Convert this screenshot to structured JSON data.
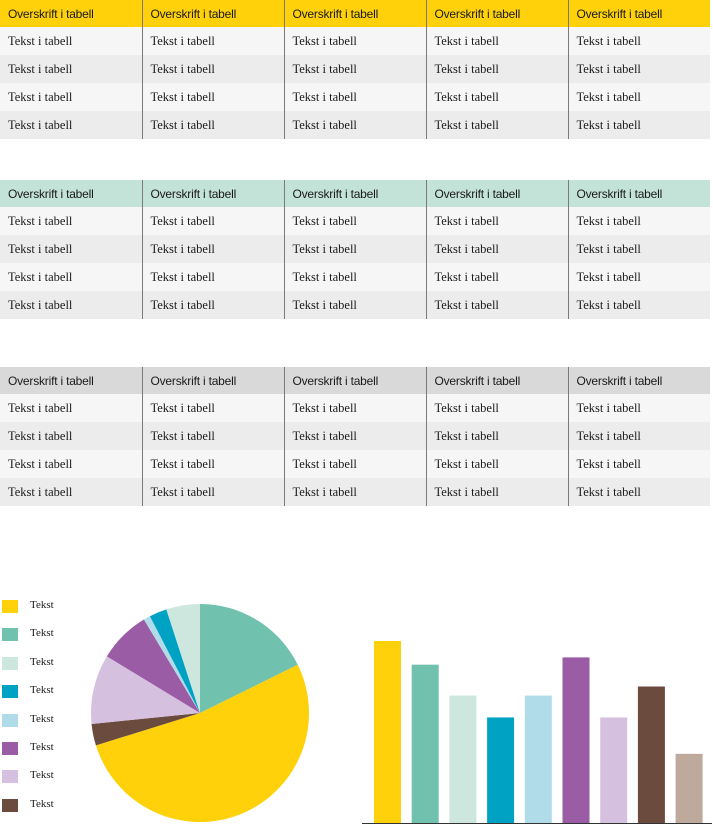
{
  "tables": [
    {
      "id": "t1",
      "headers": [
        "Overskrift i tabell",
        "Overskrift i tabell",
        "Overskrift i tabell",
        "Overskrift i tabell",
        "Overskrift i tabell"
      ],
      "rows": [
        [
          "Tekst i tabell",
          "Tekst i tabell",
          "Tekst i tabell",
          "Tekst i tabell",
          "Tekst i tabell"
        ],
        [
          "Tekst i tabell",
          "Tekst i tabell",
          "Tekst i tabell",
          "Tekst i tabell",
          "Tekst i tabell"
        ],
        [
          "Tekst i tabell",
          "Tekst i tabell",
          "Tekst i tabell",
          "Tekst i tabell",
          "Tekst i tabell"
        ],
        [
          "Tekst i tabell",
          "Tekst i tabell",
          "Tekst i tabell",
          "Tekst i tabell",
          "Tekst i tabell"
        ]
      ]
    },
    {
      "id": "t2",
      "headers": [
        "Overskrift i tabell",
        "Overskrift i tabell",
        "Overskrift i tabell",
        "Overskrift i tabell",
        "Overskrift i tabell"
      ],
      "rows": [
        [
          "Tekst i tabell",
          "Tekst i tabell",
          "Tekst i tabell",
          "Tekst i tabell",
          "Tekst i tabell"
        ],
        [
          "Tekst i tabell",
          "Tekst i tabell",
          "Tekst i tabell",
          "Tekst i tabell",
          "Tekst i tabell"
        ],
        [
          "Tekst i tabell",
          "Tekst i tabell",
          "Tekst i tabell",
          "Tekst i tabell",
          "Tekst i tabell"
        ],
        [
          "Tekst i tabell",
          "Tekst i tabell",
          "Tekst i tabell",
          "Tekst i tabell",
          "Tekst i tabell"
        ]
      ]
    },
    {
      "id": "t3",
      "headers": [
        "Overskrift i tabell",
        "Overskrift i tabell",
        "Overskrift i tabell",
        "Overskrift i tabell",
        "Overskrift i tabell"
      ],
      "rows": [
        [
          "Tekst i tabell",
          "Tekst i tabell",
          "Tekst i tabell",
          "Tekst i tabell",
          "Tekst i tabell"
        ],
        [
          "Tekst i tabell",
          "Tekst i tabell",
          "Tekst i tabell",
          "Tekst i tabell",
          "Tekst i tabell"
        ],
        [
          "Tekst i tabell",
          "Tekst i tabell",
          "Tekst i tabell",
          "Tekst i tabell",
          "Tekst i tabell"
        ],
        [
          "Tekst i tabell",
          "Tekst i tabell",
          "Tekst i tabell",
          "Tekst i tabell",
          "Tekst i tabell"
        ]
      ]
    }
  ],
  "colors": {
    "yellow": "#ffd10a",
    "green": "#70c1ad",
    "pale_green": "#cde7de",
    "teal": "#00a2c4",
    "light_blue": "#b0dcea",
    "purple": "#9b5ca6",
    "lavender": "#d5c1df",
    "brown": "#6b4b3e",
    "taupe": "#bea99d"
  },
  "chart_data": [
    {
      "type": "pie",
      "legend": [
        "Tekst",
        "Tekst",
        "Tekst",
        "Tekst",
        "Tekst",
        "Tekst",
        "Tekst",
        "Tekst"
      ],
      "legend_colors": [
        "#ffd10a",
        "#70c1ad",
        "#cde7de",
        "#00a2c4",
        "#b0dcea",
        "#9b5ca6",
        "#d5c1df",
        "#6b4b3e"
      ],
      "slices": [
        {
          "value": 17.7,
          "color": "#70c1ad"
        },
        {
          "value": 52.5,
          "color": "#ffd10a"
        },
        {
          "value": 3.2,
          "color": "#6b4b3e"
        },
        {
          "value": 10.3,
          "color": "#d5c1df"
        },
        {
          "value": 7.7,
          "color": "#9b5ca6"
        },
        {
          "value": 1.0,
          "color": "#b0dcea"
        },
        {
          "value": 2.6,
          "color": "#00a2c4"
        },
        {
          "value": 5.0,
          "color": "#cde7de"
        }
      ]
    },
    {
      "type": "bar",
      "values": [
        100,
        87,
        70,
        58,
        70,
        91,
        58,
        75,
        38
      ],
      "colors": [
        "#ffd10a",
        "#70c1ad",
        "#cde7de",
        "#00a2c4",
        "#b0dcea",
        "#9b5ca6",
        "#d5c1df",
        "#6b4b3e",
        "#bea99d"
      ],
      "ylim": [
        0,
        100
      ]
    }
  ]
}
